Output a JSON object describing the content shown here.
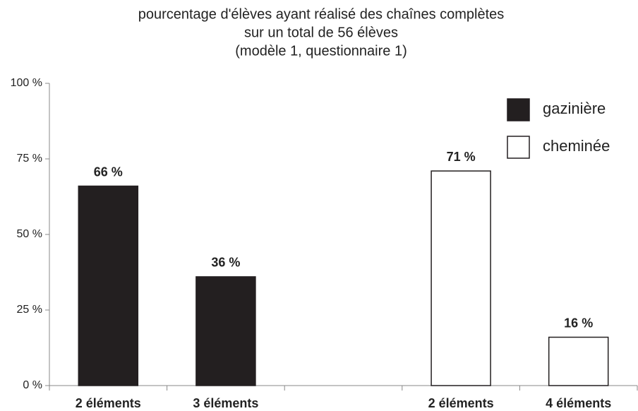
{
  "chart_data": {
    "type": "bar",
    "title": [
      "pourcentage d'élèves ayant réalisé des chaînes complètes",
      "sur un total de 56 élèves",
      "(modèle 1, questionnaire 1)"
    ],
    "categories": [
      "2 éléments",
      "3 éléments",
      null,
      "2 éléments",
      "4 éléments"
    ],
    "series": [
      {
        "name": "gazinière",
        "color": "#231f20",
        "values": [
          66,
          36,
          null,
          null,
          null
        ],
        "value_labels": [
          "66 %",
          "36 %",
          null,
          null,
          null
        ]
      },
      {
        "name": "cheminée",
        "color": "#ffffff",
        "values": [
          null,
          null,
          null,
          71,
          16
        ],
        "value_labels": [
          null,
          null,
          null,
          "71 %",
          "16 %"
        ]
      }
    ],
    "ylim": [
      0,
      100
    ],
    "yticks": [
      {
        "value": 0,
        "label": "0 %"
      },
      {
        "value": 25,
        "label": "25 %"
      },
      {
        "value": 50,
        "label": "50 %"
      },
      {
        "value": 75,
        "label": "75 %"
      },
      {
        "value": 100,
        "label": "100 %"
      }
    ],
    "grid": false,
    "legend": "top-right"
  }
}
